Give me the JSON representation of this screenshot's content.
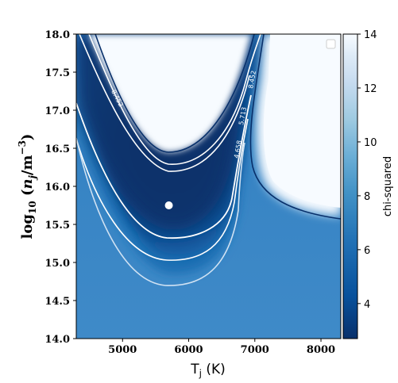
{
  "chart_data": {
    "type": "heatmap",
    "xlabel": "T_j (K)",
    "ylabel": "log10 (n_j / m^-3)",
    "xlim": [
      4300,
      8300
    ],
    "ylim": [
      14.0,
      18.0
    ],
    "x_ticks": [
      5000,
      6000,
      7000,
      8000
    ],
    "y_ticks": [
      14.0,
      14.5,
      15.0,
      15.5,
      16.0,
      16.5,
      17.0,
      17.5,
      18.0
    ],
    "y_tick_labels": [
      "14.0",
      "14.5",
      "15.0",
      "15.5",
      "16.0",
      "16.5",
      "17.0",
      "17.5",
      "18.0"
    ],
    "colormap": "Blues_r",
    "colorbar": {
      "label": "chi-squared",
      "range": [
        2.7,
        14
      ],
      "ticks": [
        4,
        6,
        8,
        10,
        12,
        14
      ]
    },
    "best_fit": {
      "x": 5700,
      "y": 15.75
    },
    "contours": [
      {
        "level": "4.658",
        "color": "#ffffff"
      },
      {
        "level": "5.713",
        "color": "#ffffff"
      },
      {
        "level": "8.452",
        "color": "#ffffff"
      }
    ],
    "boundary_contour_color": "#08306b",
    "legend_placement": "top-right",
    "grid": false
  }
}
